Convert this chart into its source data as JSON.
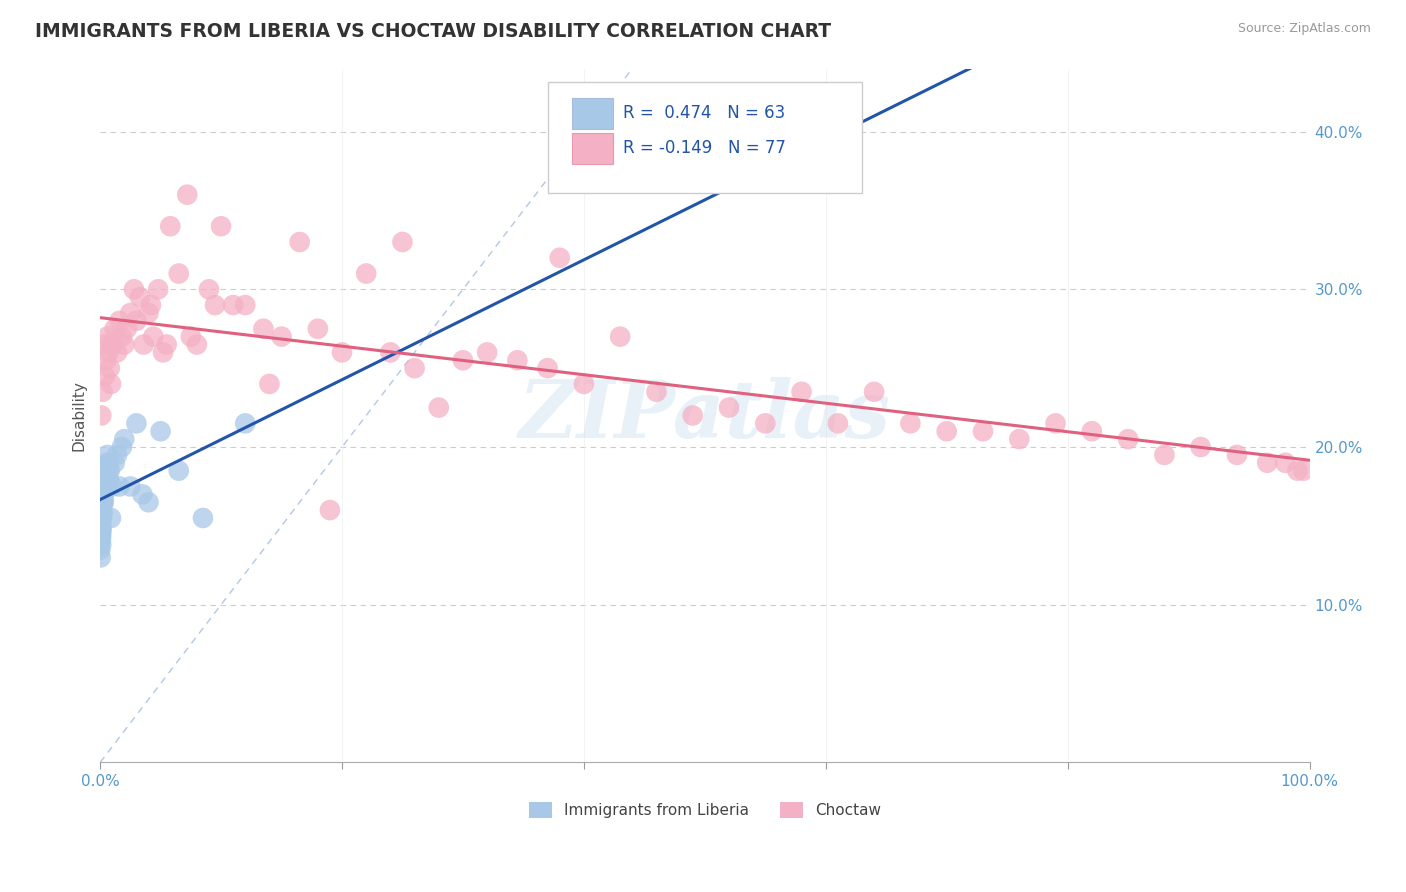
{
  "title": "IMMIGRANTS FROM LIBERIA VS CHOCTAW DISABILITY CORRELATION CHART",
  "source": "Source: ZipAtlas.com",
  "ylabel": "Disability",
  "legend_label1": "Immigrants from Liberia",
  "legend_label2": "Choctaw",
  "r1": 0.474,
  "n1": 63,
  "r2": -0.149,
  "n2": 77,
  "xlim": [
    0.0,
    1.0
  ],
  "ylim": [
    0.0,
    0.44
  ],
  "color_blue": "#a8c8e8",
  "color_blue_line": "#2255aa",
  "color_pink": "#f4b0c4",
  "color_pink_line": "#e06080",
  "watermark": "ZIPatlas",
  "blue_scatter_x": [
    0.0002,
    0.0003,
    0.0004,
    0.0005,
    0.0005,
    0.0006,
    0.0007,
    0.0008,
    0.0009,
    0.001,
    0.001,
    0.001,
    0.0012,
    0.0013,
    0.0014,
    0.0015,
    0.0015,
    0.0016,
    0.0017,
    0.0018,
    0.002,
    0.002,
    0.002,
    0.002,
    0.0022,
    0.0023,
    0.0025,
    0.0026,
    0.0028,
    0.003,
    0.003,
    0.003,
    0.003,
    0.0032,
    0.0035,
    0.0038,
    0.004,
    0.004,
    0.0042,
    0.0045,
    0.005,
    0.005,
    0.0055,
    0.006,
    0.0065,
    0.007,
    0.0075,
    0.008,
    0.009,
    0.01,
    0.012,
    0.014,
    0.016,
    0.018,
    0.02,
    0.025,
    0.03,
    0.035,
    0.04,
    0.05,
    0.065,
    0.085,
    0.12
  ],
  "blue_scatter_y": [
    0.135,
    0.155,
    0.145,
    0.13,
    0.14,
    0.155,
    0.148,
    0.142,
    0.138,
    0.152,
    0.16,
    0.145,
    0.158,
    0.148,
    0.165,
    0.155,
    0.162,
    0.158,
    0.17,
    0.16,
    0.175,
    0.168,
    0.158,
    0.172,
    0.165,
    0.17,
    0.165,
    0.178,
    0.168,
    0.175,
    0.18,
    0.172,
    0.165,
    0.178,
    0.175,
    0.182,
    0.188,
    0.175,
    0.18,
    0.185,
    0.175,
    0.185,
    0.19,
    0.195,
    0.182,
    0.188,
    0.178,
    0.185,
    0.155,
    0.175,
    0.19,
    0.195,
    0.175,
    0.2,
    0.205,
    0.175,
    0.215,
    0.17,
    0.165,
    0.21,
    0.185,
    0.155,
    0.215
  ],
  "pink_scatter_x": [
    0.001,
    0.002,
    0.003,
    0.004,
    0.005,
    0.006,
    0.007,
    0.008,
    0.009,
    0.01,
    0.012,
    0.014,
    0.016,
    0.018,
    0.02,
    0.022,
    0.025,
    0.028,
    0.03,
    0.033,
    0.036,
    0.04,
    0.044,
    0.048,
    0.052,
    0.058,
    0.065,
    0.072,
    0.08,
    0.09,
    0.1,
    0.11,
    0.12,
    0.135,
    0.15,
    0.165,
    0.18,
    0.2,
    0.22,
    0.24,
    0.26,
    0.28,
    0.3,
    0.32,
    0.345,
    0.37,
    0.4,
    0.43,
    0.46,
    0.49,
    0.52,
    0.55,
    0.58,
    0.61,
    0.64,
    0.67,
    0.7,
    0.73,
    0.76,
    0.79,
    0.82,
    0.85,
    0.88,
    0.91,
    0.94,
    0.965,
    0.98,
    0.99,
    0.995,
    0.042,
    0.055,
    0.075,
    0.095,
    0.14,
    0.25,
    0.19,
    0.38
  ],
  "pink_scatter_y": [
    0.22,
    0.235,
    0.265,
    0.245,
    0.255,
    0.27,
    0.26,
    0.25,
    0.24,
    0.265,
    0.275,
    0.26,
    0.28,
    0.27,
    0.265,
    0.275,
    0.285,
    0.3,
    0.28,
    0.295,
    0.265,
    0.285,
    0.27,
    0.3,
    0.26,
    0.34,
    0.31,
    0.36,
    0.265,
    0.3,
    0.34,
    0.29,
    0.29,
    0.275,
    0.27,
    0.33,
    0.275,
    0.26,
    0.31,
    0.26,
    0.25,
    0.225,
    0.255,
    0.26,
    0.255,
    0.25,
    0.24,
    0.27,
    0.235,
    0.22,
    0.225,
    0.215,
    0.235,
    0.215,
    0.235,
    0.215,
    0.21,
    0.21,
    0.205,
    0.215,
    0.21,
    0.205,
    0.195,
    0.2,
    0.195,
    0.19,
    0.19,
    0.185,
    0.185,
    0.29,
    0.265,
    0.27,
    0.29,
    0.24,
    0.33,
    0.16,
    0.32
  ]
}
